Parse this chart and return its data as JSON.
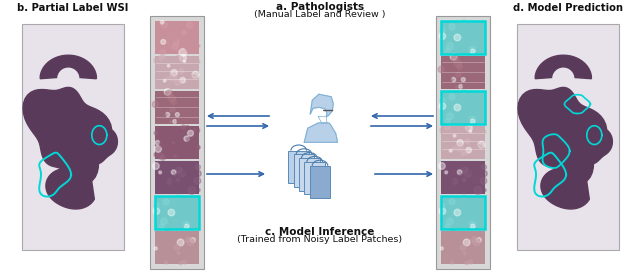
{
  "title_a": "a. Pathologists",
  "subtitle_a": "(Manual Label and Review )",
  "title_b": "b. Partial Label WSI",
  "title_c": "c. Model Inference",
  "subtitle_c": "(Trained from Noisy Label Patches)",
  "title_d": "d. Model Prediction",
  "bg_color": "#ffffff",
  "strip_bg": "#d8d8d8",
  "wsi_tissue_color": "#5a3a5a",
  "wsi_bg_color": "#e8e2ea",
  "cyan_color": "#00d8d8",
  "blue_icon": "#7bafd4",
  "blue_light": "#b8d0e8",
  "blue_dark": "#4a7aaa",
  "arrow_color": "#3366aa",
  "border_color": "#aaaaaa",
  "patch_pink": "#c4909a",
  "patch_mauve": "#8a5868",
  "patch_dark": "#7a5070",
  "patch_light": "#d4aab0",
  "patch_cyan": "#80d8d8",
  "patch_tissue1": "#b87880",
  "patch_tissue2": "#987080",
  "nn_face": "#c8d8ec",
  "nn_edge": "#5a8ab8",
  "nn_dark": "#8aaad0"
}
